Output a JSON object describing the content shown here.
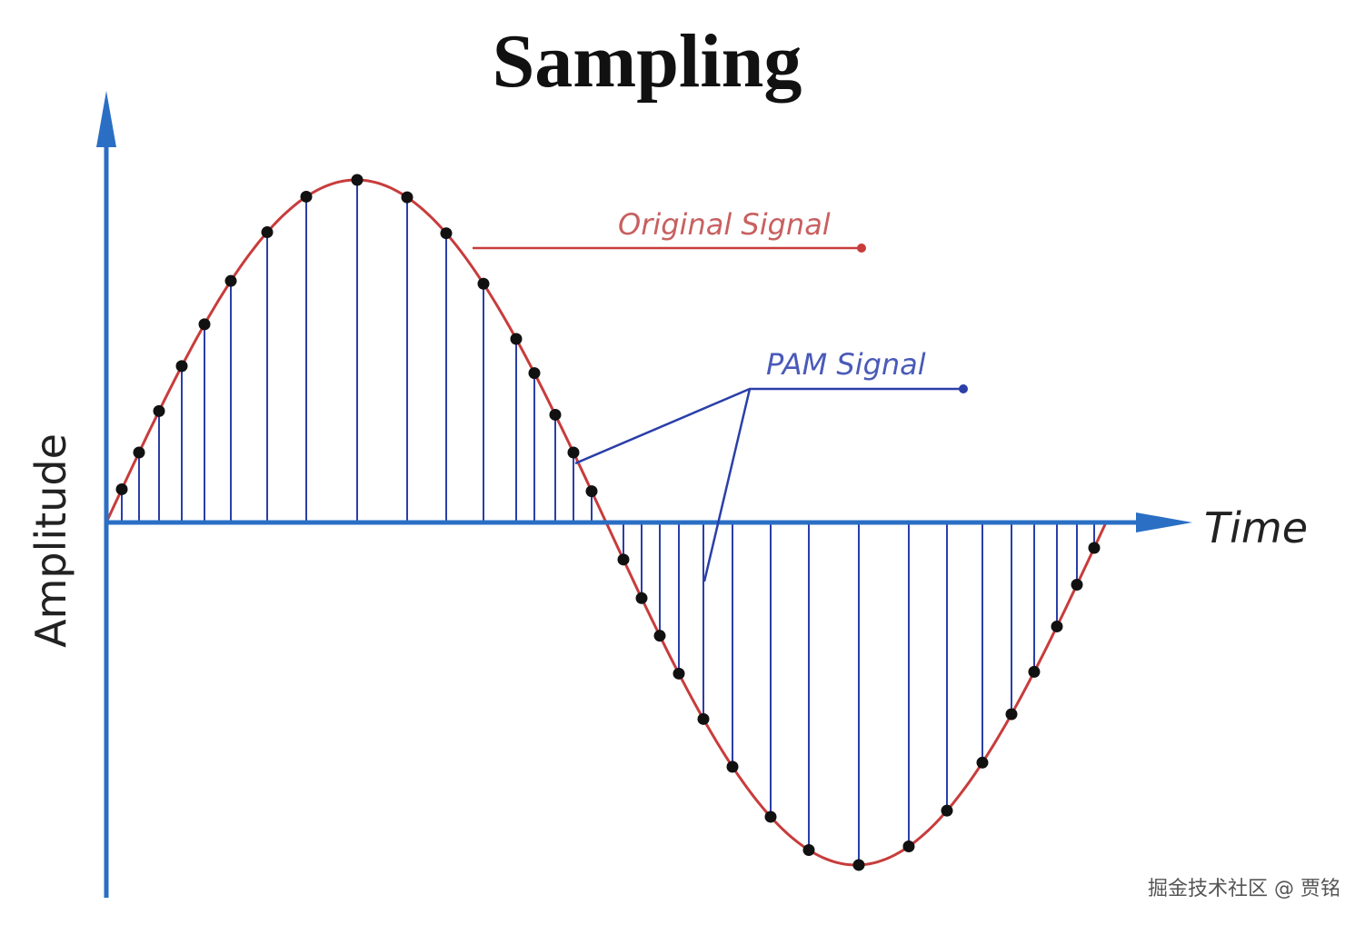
{
  "title": "Sampling",
  "labels": {
    "original_signal": "Original Signal",
    "pam_signal": "PAM Signal",
    "x_axis": "Time",
    "y_axis": "Amplitude"
  },
  "watermark": "掘金技术社区 @ 贾铭"
}
